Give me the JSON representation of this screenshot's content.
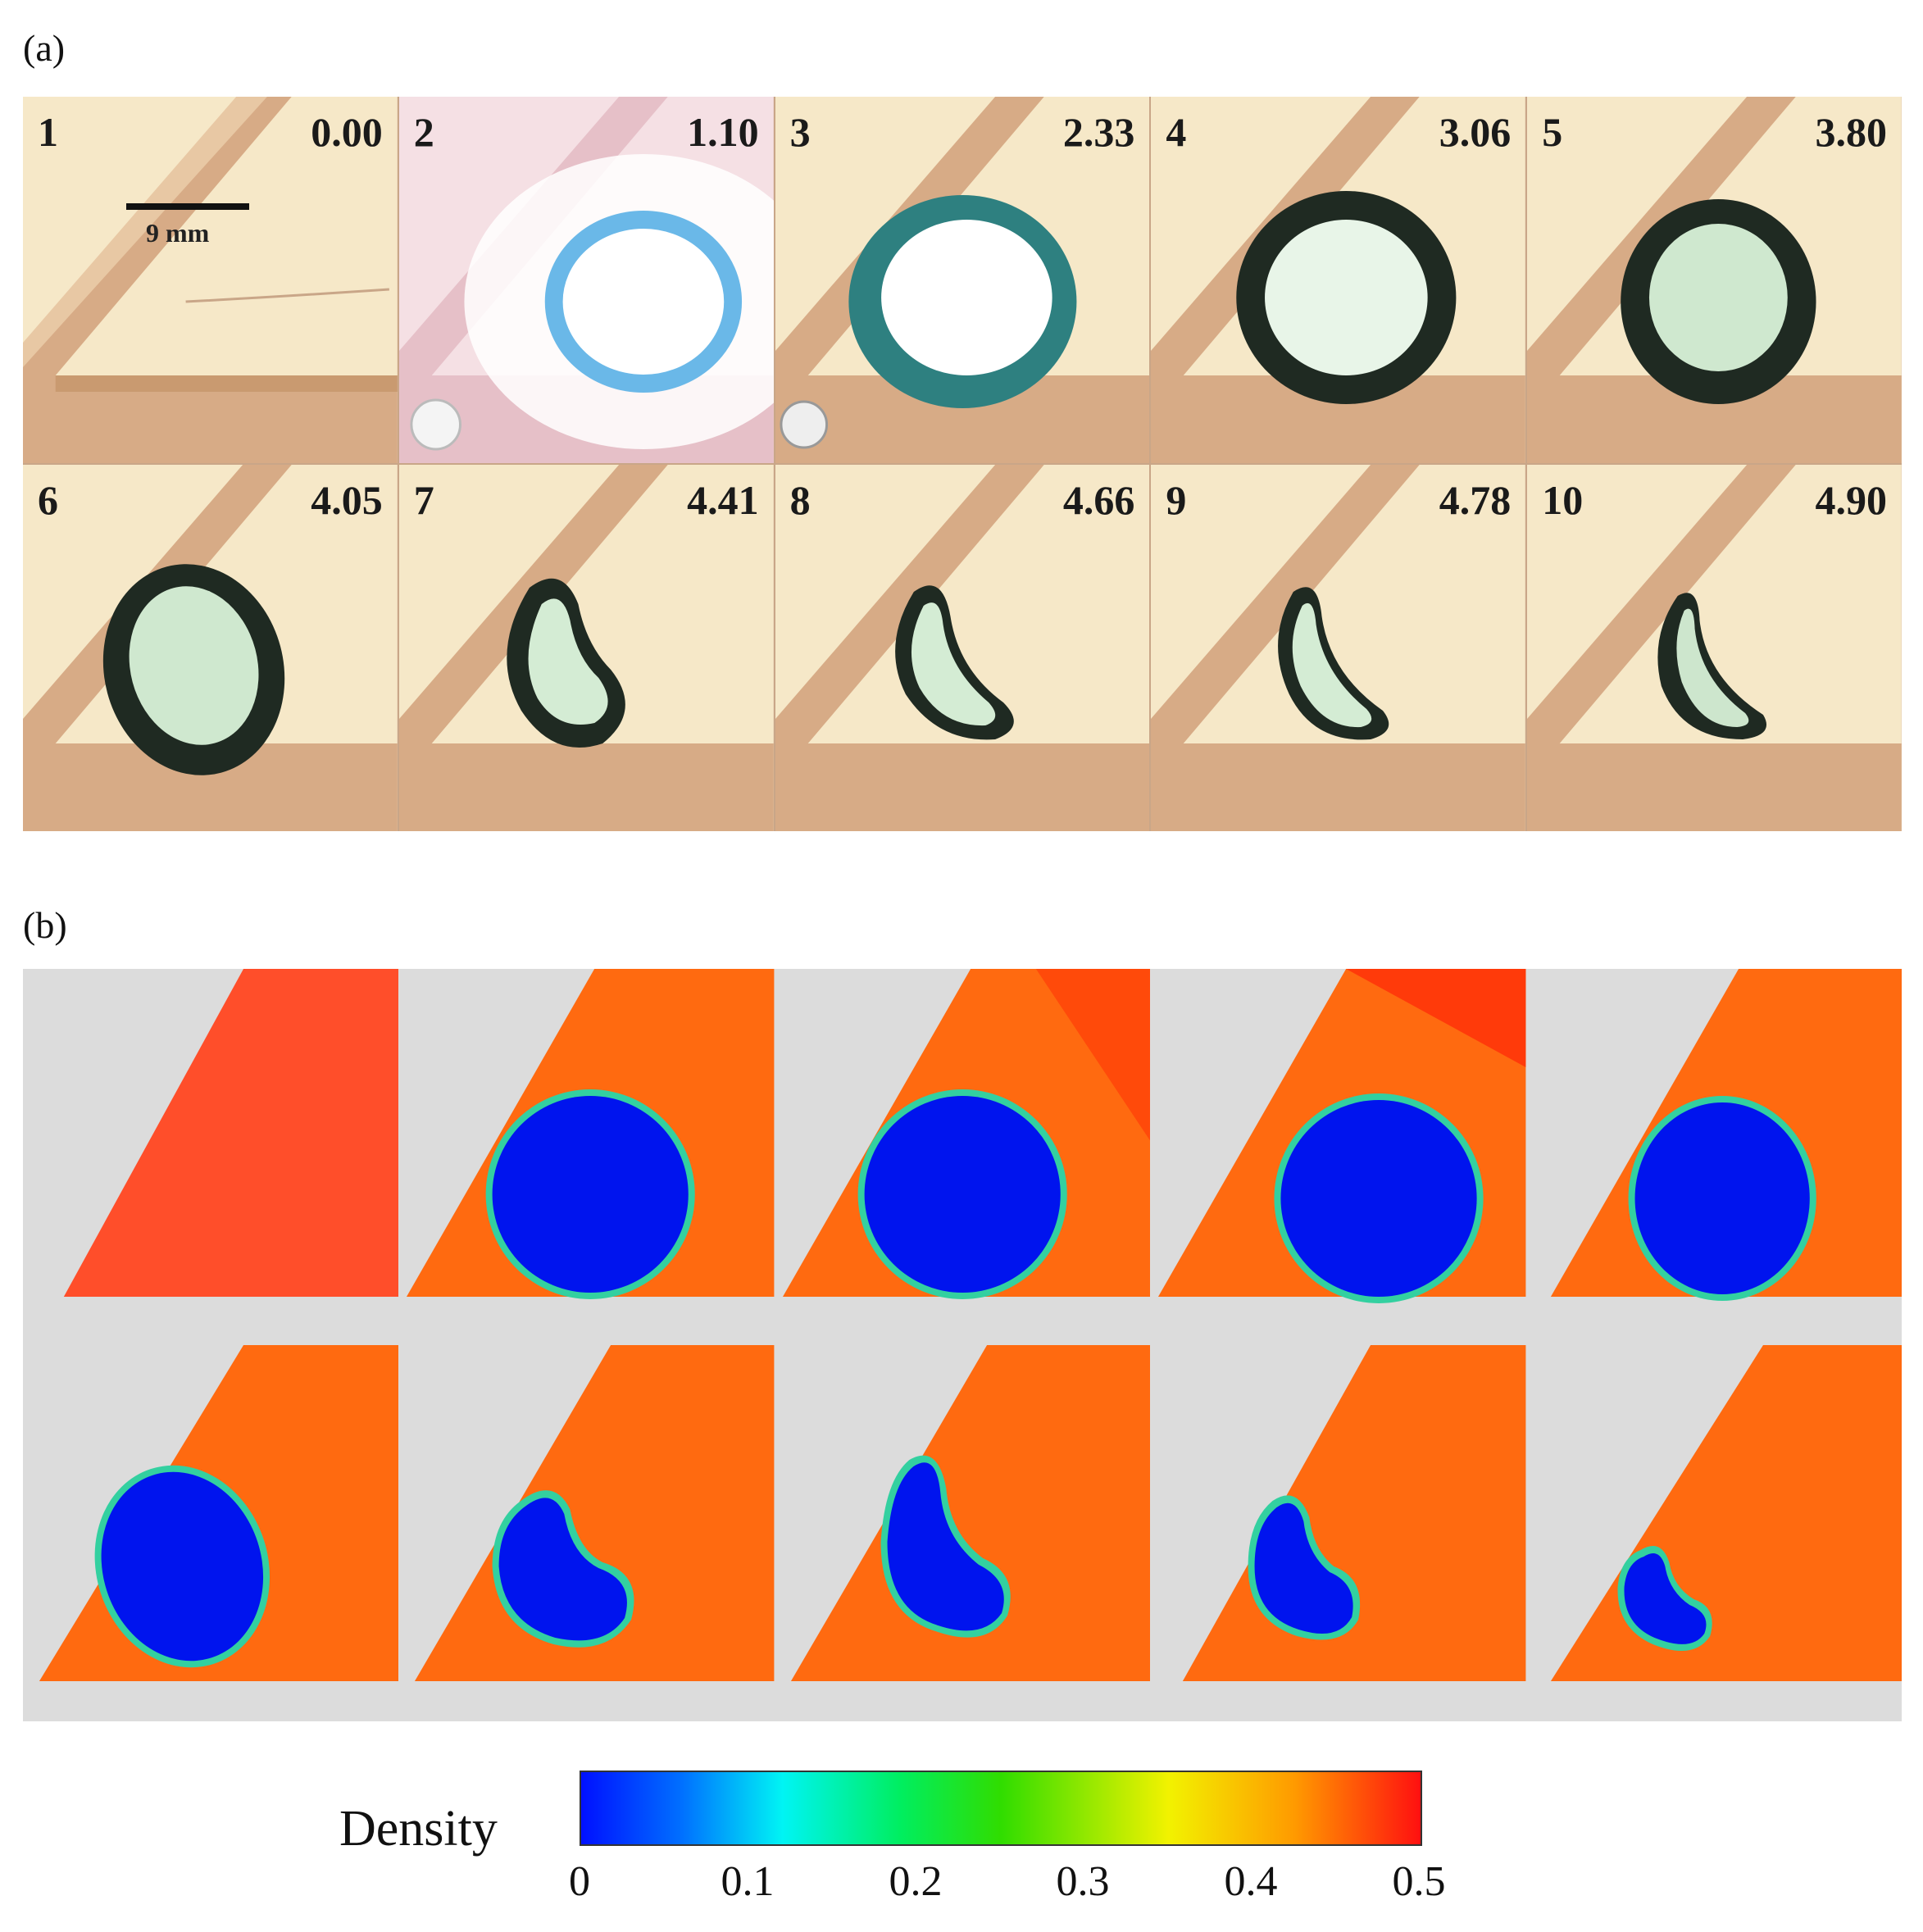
{
  "panel_a_label": "(a)",
  "panel_b_label": "(b)",
  "scale_bar": "9 mm",
  "frames": [
    {
      "index": "1",
      "time": "0.00"
    },
    {
      "index": "2",
      "time": "1.10"
    },
    {
      "index": "3",
      "time": "2.33"
    },
    {
      "index": "4",
      "time": "3.06"
    },
    {
      "index": "5",
      "time": "3.80"
    },
    {
      "index": "6",
      "time": "4.05"
    },
    {
      "index": "7",
      "time": "4.41"
    },
    {
      "index": "8",
      "time": "4.66"
    },
    {
      "index": "9",
      "time": "4.78"
    },
    {
      "index": "10",
      "time": "4.90"
    }
  ],
  "colorbar": {
    "title": "Density",
    "ticks": [
      "0",
      "0.1",
      "0.2",
      "0.3",
      "0.4",
      "0.5"
    ],
    "range": [
      0,
      0.5
    ],
    "colors": {
      "low": "#0010ff",
      "mid": "#30dd00",
      "high": "#ff1010"
    }
  },
  "colors": {
    "photo_background": "#f6e8c8",
    "photo_wall": "#d7ab86",
    "sim_background": "#dcdcdc",
    "sim_fluid": "#ff6a10",
    "sim_droplet": "#0014ee"
  }
}
